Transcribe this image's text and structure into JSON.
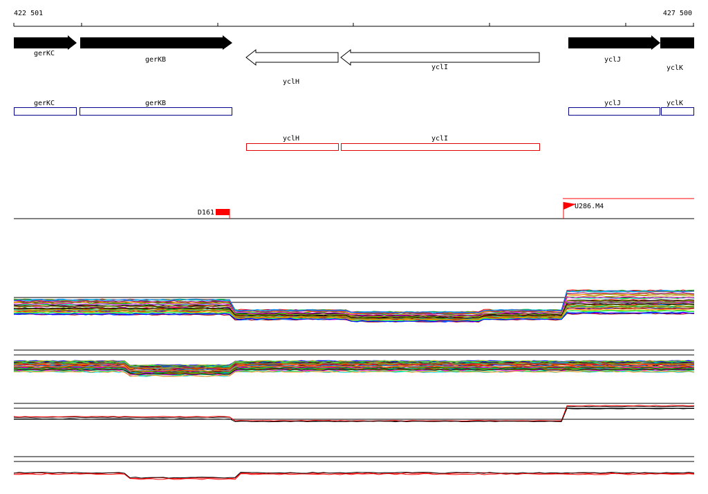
{
  "axis": {
    "start_label": "422 501",
    "end_label": "427 500"
  },
  "forward_genes": [
    {
      "name": "gerKC"
    },
    {
      "name": "gerKB"
    },
    {
      "name": "yclJ"
    },
    {
      "name": "yclK"
    }
  ],
  "reverse_genes": [
    {
      "name": "yclH"
    },
    {
      "name": "yclI"
    }
  ],
  "blue_features": [
    {
      "name": "gerKC"
    },
    {
      "name": "gerKB"
    },
    {
      "name": "yclJ"
    },
    {
      "name": "yclK"
    }
  ],
  "red_features": [
    {
      "name": "yclH"
    },
    {
      "name": "yclI"
    }
  ],
  "markers": [
    {
      "name": "D161"
    },
    {
      "name": "U286.M4"
    }
  ]
}
